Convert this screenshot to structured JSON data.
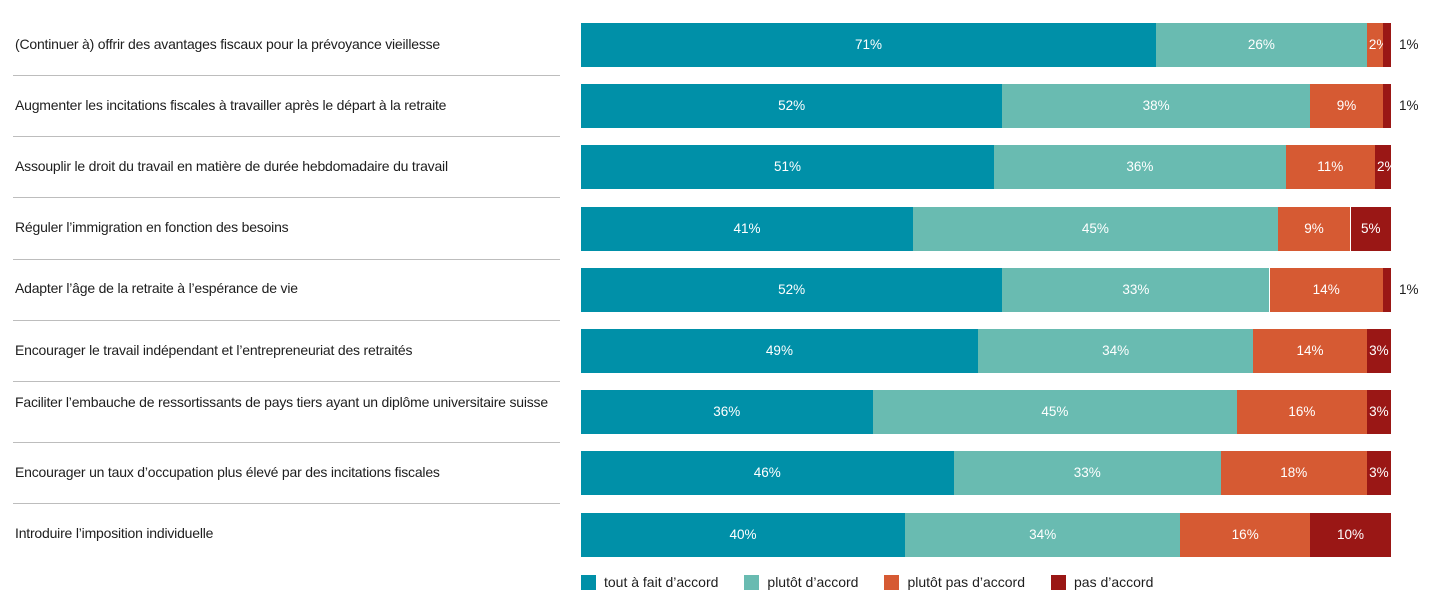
{
  "chart_data": {
    "type": "bar",
    "orientation": "horizontal",
    "stacked": true,
    "title": "",
    "xlabel": "",
    "ylabel": "",
    "xlim": [
      0,
      100
    ],
    "unit": "%",
    "categories": [
      "(Continuer à) offrir des avantages fiscaux pour la prévoyance vieillesse",
      "Augmenter les incitations fiscales à travailler après le départ à la retraite",
      "Assouplir le droit du travail en matière de durée hebdomadaire du travail",
      "Réguler l’immigration en fonction des besoins",
      "Adapter l’âge de la retraite à l’espérance de vie",
      "Encourager le travail indépendant et l’entrepreneuriat des retraités",
      "Faciliter l’embauche de ressortissants de pays tiers ayant un diplôme universitaire suisse",
      "Encourager un taux d’occupation plus élevé par des incitations fiscales",
      "Introduire l’imposition individuelle"
    ],
    "series": [
      {
        "name": "tout à fait d’accord",
        "color": "#0090a8",
        "values": [
          71,
          52,
          51,
          41,
          52,
          49,
          36,
          46,
          40
        ]
      },
      {
        "name": "plutôt d’accord",
        "color": "#69bbb1",
        "values": [
          26,
          38,
          36,
          45,
          33,
          34,
          45,
          33,
          34
        ]
      },
      {
        "name": "plutôt pas d’accord",
        "color": "#d65a33",
        "values": [
          2,
          9,
          11,
          9,
          14,
          14,
          16,
          18,
          16
        ]
      },
      {
        "name": "pas d’accord",
        "color": "#9a1715",
        "values": [
          1,
          1,
          2,
          5,
          1,
          3,
          3,
          3,
          10
        ]
      }
    ],
    "legend_position": "bottom-left",
    "grid": false
  }
}
